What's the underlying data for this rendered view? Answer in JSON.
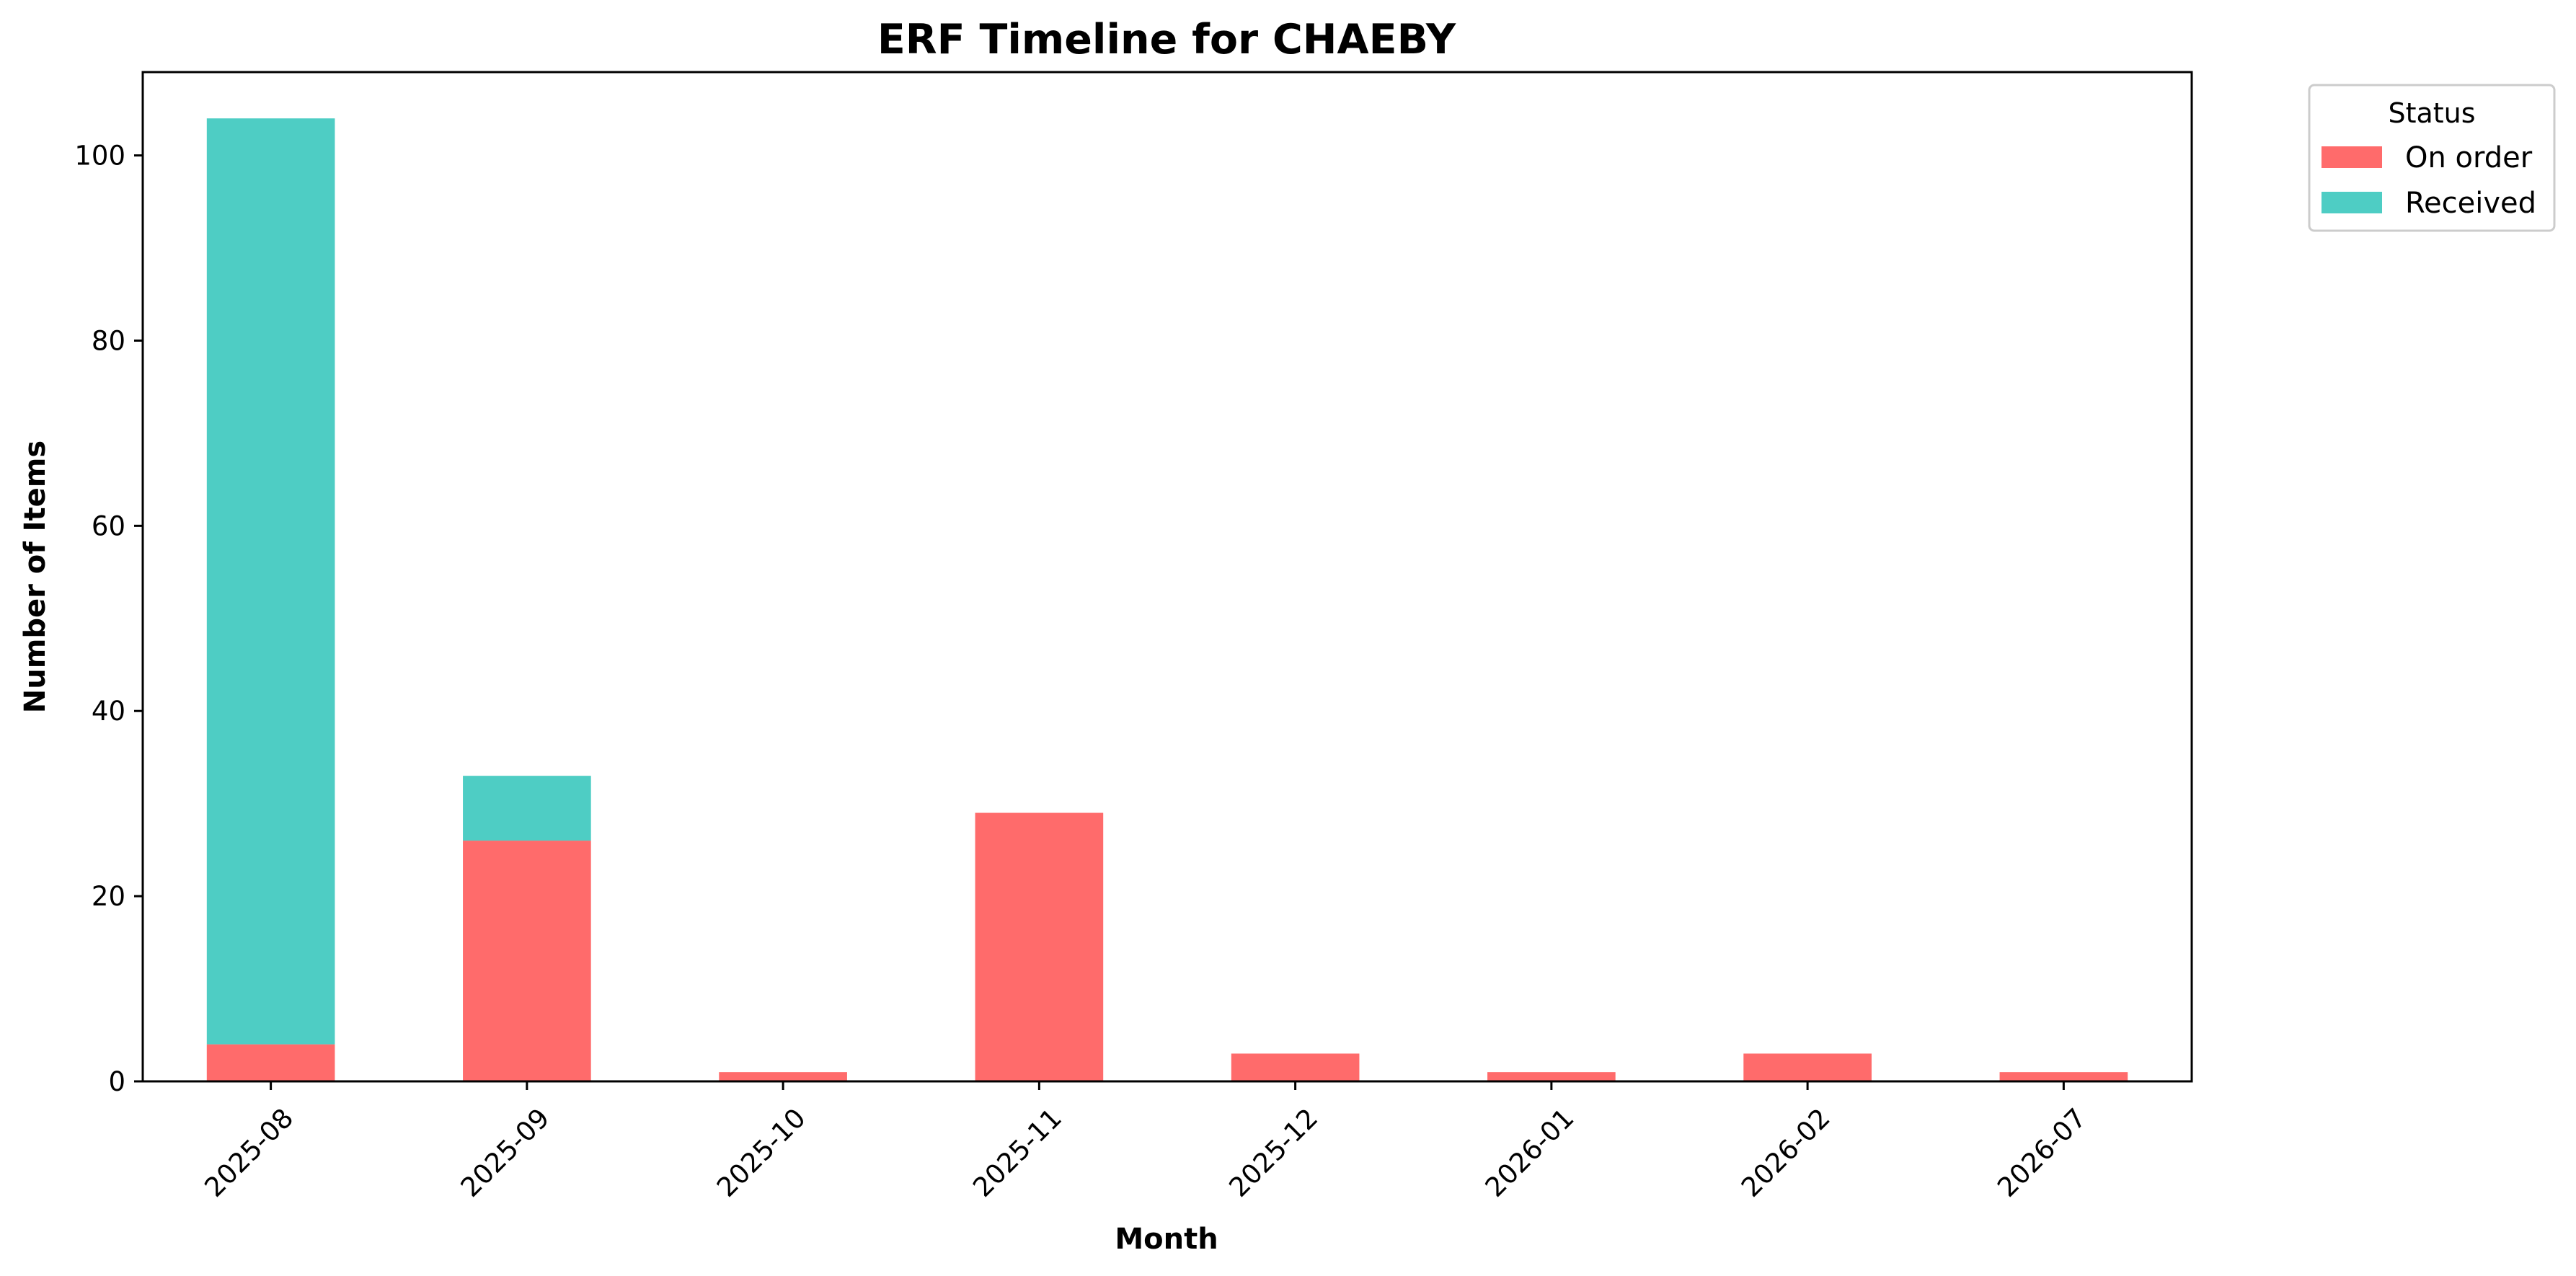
{
  "chart_data": {
    "type": "bar",
    "stacked": true,
    "title": "ERF Timeline for CHAEBY",
    "xlabel": "Month",
    "ylabel": "Number of Items",
    "categories": [
      "2025-08",
      "2025-09",
      "2025-10",
      "2025-11",
      "2025-12",
      "2026-01",
      "2026-02",
      "2026-07"
    ],
    "series": [
      {
        "name": "On order",
        "color": "#ff6b6b",
        "values": [
          4,
          26,
          1,
          29,
          3,
          1,
          3,
          1
        ]
      },
      {
        "name": "Received",
        "color": "#4ecdc4",
        "values": [
          100,
          7,
          0,
          0,
          0,
          0,
          0,
          0
        ]
      }
    ],
    "ylim": [
      0,
      109
    ],
    "yticks": [
      0,
      20,
      40,
      60,
      80,
      100
    ],
    "grid": false,
    "legend": {
      "title": "Status",
      "placement": "outside-top-right"
    }
  }
}
